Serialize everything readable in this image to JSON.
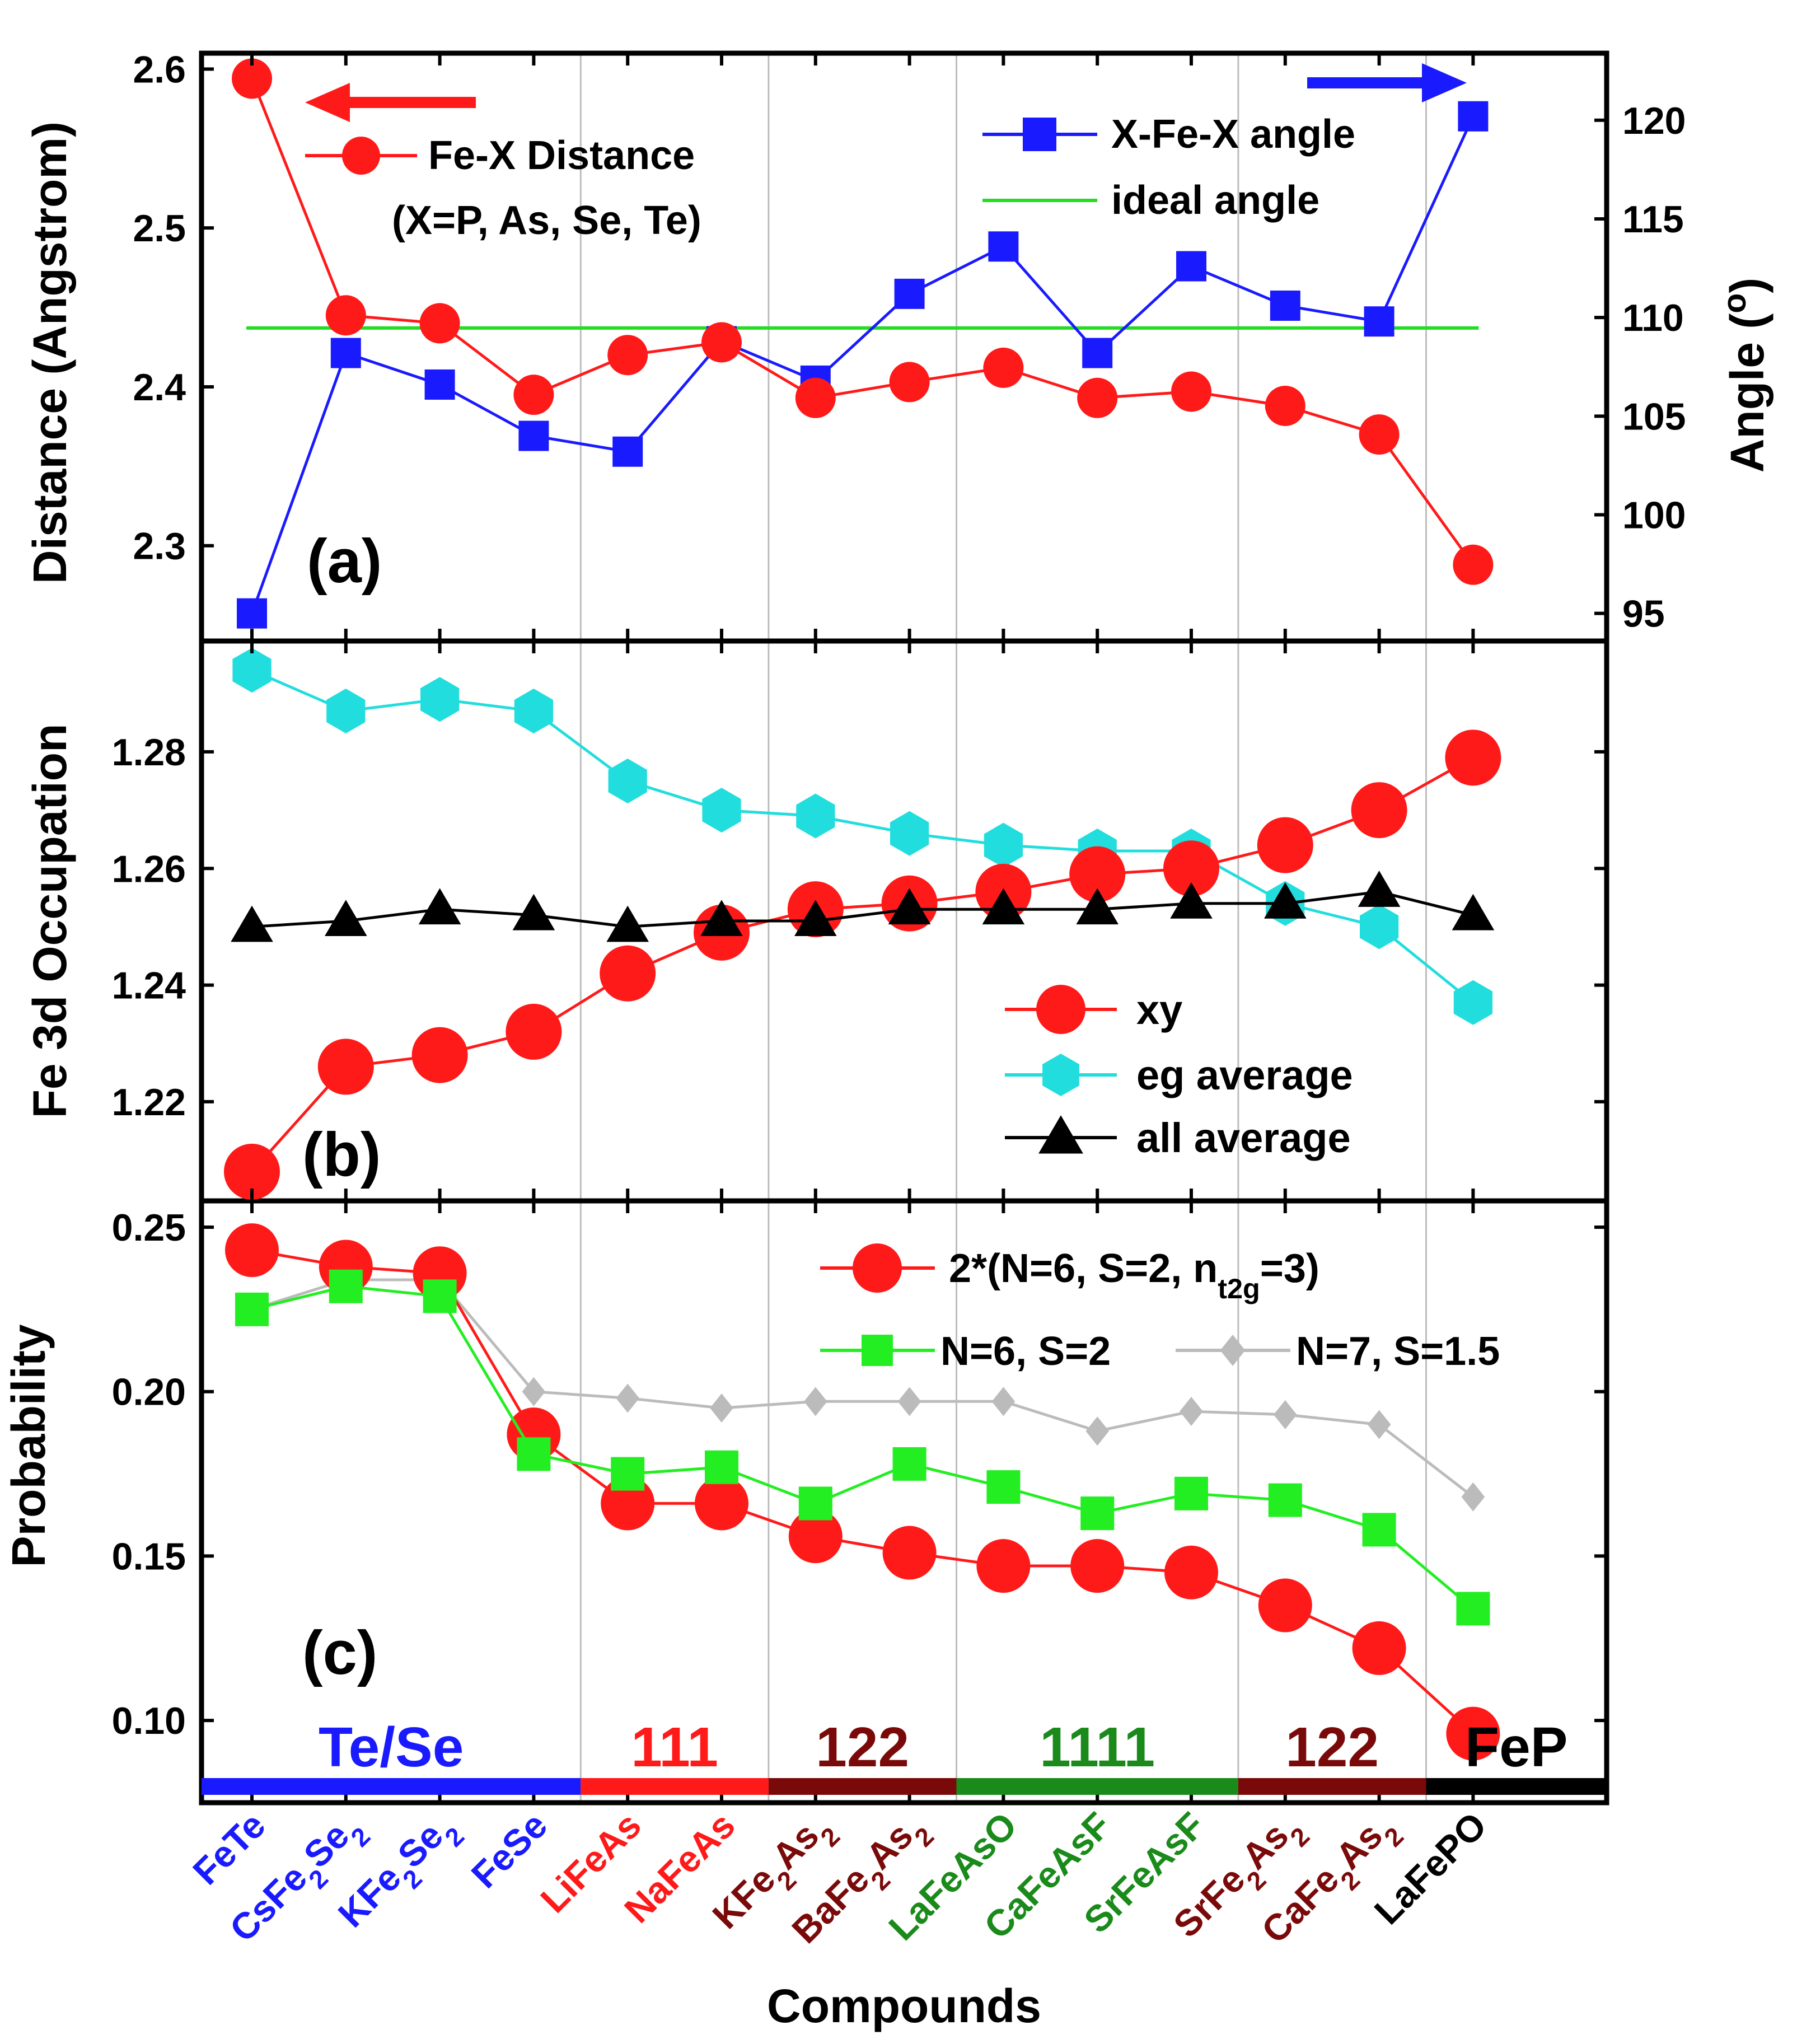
{
  "compounds": [
    "FeTe",
    "CsFe2Se2",
    "KFe2Se2",
    "FeSe",
    "LiFeAs",
    "NaFeAs",
    "KFe2As2",
    "BaFe2As2",
    "LaFeAsO",
    "CaFeAsF",
    "SrFeAsF",
    "SrFe2As2",
    "CaFe2As2",
    "LaFePO"
  ],
  "compound_labels": [
    {
      "base": "FeTe",
      "parts": [
        [
          "FeTe",
          ""
        ]
      ]
    },
    {
      "base": "CsFe2Se2",
      "parts": [
        [
          "CsFe",
          ""
        ],
        [
          "2",
          "sub"
        ],
        [
          "Se",
          ""
        ],
        [
          "2",
          "sub"
        ]
      ]
    },
    {
      "base": "KFe2Se2",
      "parts": [
        [
          "KFe",
          ""
        ],
        [
          "2",
          "sub"
        ],
        [
          "Se",
          ""
        ],
        [
          "2",
          "sub"
        ]
      ]
    },
    {
      "base": "FeSe",
      "parts": [
        [
          "FeSe",
          ""
        ]
      ]
    },
    {
      "base": "LiFeAs",
      "parts": [
        [
          "LiFeAs",
          ""
        ]
      ]
    },
    {
      "base": "NaFeAs",
      "parts": [
        [
          "NaFeAs",
          ""
        ]
      ]
    },
    {
      "base": "KFe2As2",
      "parts": [
        [
          "KFe",
          ""
        ],
        [
          "2",
          "sub"
        ],
        [
          "As",
          ""
        ],
        [
          "2",
          "sub"
        ]
      ]
    },
    {
      "base": "BaFe2As2",
      "parts": [
        [
          "BaFe",
          ""
        ],
        [
          "2",
          "sub"
        ],
        [
          "As",
          ""
        ],
        [
          "2",
          "sub"
        ]
      ]
    },
    {
      "base": "LaFeAsO",
      "parts": [
        [
          "LaFeAsO",
          ""
        ]
      ]
    },
    {
      "base": "CaFeAsF",
      "parts": [
        [
          "CaFeAsF",
          ""
        ]
      ]
    },
    {
      "base": "SrFeAsF",
      "parts": [
        [
          "SrFeAsF",
          ""
        ]
      ]
    },
    {
      "base": "SrFe2As2",
      "parts": [
        [
          "SrFe",
          ""
        ],
        [
          "2",
          "sub"
        ],
        [
          "As",
          ""
        ],
        [
          "2",
          "sub"
        ]
      ]
    },
    {
      "base": "CaFe2As2",
      "parts": [
        [
          "CaFe",
          ""
        ],
        [
          "2",
          "sub"
        ],
        [
          "As",
          ""
        ],
        [
          "2",
          "sub"
        ]
      ]
    },
    {
      "base": "LaFePO",
      "parts": [
        [
          "LaFePO",
          ""
        ]
      ]
    }
  ],
  "compound_colors": [
    "#1a1aff",
    "#1a1aff",
    "#1a1aff",
    "#1a1aff",
    "#ff1a1a",
    "#ff1a1a",
    "#7a0a0a",
    "#7a0a0a",
    "#1a8a1a",
    "#1a8a1a",
    "#1a8a1a",
    "#7a0a0a",
    "#7a0a0a",
    "#000000"
  ],
  "families": [
    {
      "label": "Te/Se",
      "color": "#1a1aff",
      "from": 0,
      "to": 3
    },
    {
      "label": "111",
      "color": "#ff1a1a",
      "from": 4,
      "to": 5
    },
    {
      "label": "122",
      "color": "#7a0a0a",
      "from": 6,
      "to": 7
    },
    {
      "label": "1111",
      "color": "#1a8a1a",
      "from": 8,
      "to": 10
    },
    {
      "label": "122",
      "color": "#7a0a0a",
      "from": 11,
      "to": 12
    },
    {
      "label": "FeP",
      "color": "#000000",
      "from": 13,
      "to": 13
    }
  ],
  "xlabel": "Compounds",
  "chart_data": [
    {
      "type": "line",
      "panel_label": "(a)",
      "ylabel": "Distance (Angstrom)",
      "ylim": [
        2.24,
        2.61
      ],
      "yticks": [
        "2.3",
        "2.4",
        "2.5",
        "2.6"
      ],
      "y2label": "Angle (°)",
      "y2label_parts": [
        [
          "Angle (",
          ""
        ],
        [
          "o",
          "sup"
        ],
        [
          ")",
          ""
        ]
      ],
      "y2lim": [
        93.6,
        123.4
      ],
      "y2ticks": [
        "95",
        "100",
        "105",
        "110",
        "115",
        "120"
      ],
      "arrow_left_color": "#ff1a1a",
      "arrow_right_color": "#1a1aff",
      "series": [
        {
          "name": "Fe-X Distance",
          "name_line2": "(X=P, As, Se, Te)",
          "axis": "left",
          "color": "#ff1a1a",
          "marker": "circle",
          "values": [
            2.594,
            2.445,
            2.44,
            2.395,
            2.42,
            2.428,
            2.393,
            2.403,
            2.412,
            2.393,
            2.397,
            2.388,
            2.37,
            2.288
          ]
        },
        {
          "name": "X-Fe-X angle",
          "axis": "right",
          "color": "#1a1aff",
          "marker": "square",
          "values": [
            95.0,
            108.2,
            106.6,
            104.0,
            103.2,
            108.8,
            106.8,
            111.2,
            113.6,
            108.2,
            112.6,
            110.6,
            109.8,
            120.2
          ]
        },
        {
          "name": "ideal angle",
          "axis": "right",
          "color": "#22dd22",
          "marker": "none",
          "value": 109.47
        }
      ]
    },
    {
      "type": "line",
      "panel_label": "(b)",
      "ylabel": "Fe 3d Occupation",
      "ylim": [
        1.203,
        1.299
      ],
      "yticks": [
        "1.22",
        "1.24",
        "1.26",
        "1.28"
      ],
      "series": [
        {
          "name": "xy",
          "color": "#ff1a1a",
          "marker": "circle",
          "values": [
            1.208,
            1.226,
            1.228,
            1.232,
            1.242,
            1.249,
            1.253,
            1.254,
            1.256,
            1.259,
            1.26,
            1.264,
            1.27,
            1.279
          ]
        },
        {
          "name": "eg  average",
          "color": "#22dddd",
          "marker": "hexagon",
          "values": [
            1.294,
            1.287,
            1.289,
            1.287,
            1.275,
            1.27,
            1.269,
            1.266,
            1.264,
            1.263,
            1.263,
            1.254,
            1.25,
            1.237
          ]
        },
        {
          "name": "all  average",
          "color": "#000000",
          "marker": "triangle",
          "values": [
            1.25,
            1.251,
            1.253,
            1.252,
            1.25,
            1.251,
            1.251,
            1.253,
            1.253,
            1.253,
            1.254,
            1.254,
            1.256,
            1.252
          ]
        }
      ]
    },
    {
      "type": "line",
      "panel_label": "(c)",
      "ylabel": "Probability",
      "ylim": [
        0.075,
        0.258
      ],
      "yticks": [
        "0.10",
        "0.15",
        "0.20",
        "0.25"
      ],
      "series": [
        {
          "name": "2*(N=6, S=2, nt2g=3)",
          "name_parts": [
            [
              "2*(N=6, S=2, n",
              ""
            ],
            [
              "t2g",
              "sub"
            ],
            [
              "=3)",
              ""
            ]
          ],
          "color": "#ff1a1a",
          "marker": "circle",
          "values": [
            0.243,
            0.238,
            0.236,
            0.187,
            0.166,
            0.166,
            0.156,
            0.151,
            0.147,
            0.147,
            0.145,
            0.135,
            0.122,
            0.096
          ]
        },
        {
          "name": "N=6, S=2",
          "color": "#22ee22",
          "marker": "square",
          "values": [
            0.225,
            0.232,
            0.229,
            0.181,
            0.175,
            0.177,
            0.166,
            0.178,
            0.171,
            0.163,
            0.169,
            0.167,
            0.158,
            0.134
          ]
        },
        {
          "name": "N=7, S=1.5",
          "color": "#bbbbbb",
          "marker": "diamond",
          "values": [
            0.225,
            0.234,
            0.234,
            0.2,
            0.198,
            0.195,
            0.197,
            0.197,
            0.197,
            0.188,
            0.194,
            0.193,
            0.19,
            0.168
          ]
        }
      ]
    }
  ]
}
